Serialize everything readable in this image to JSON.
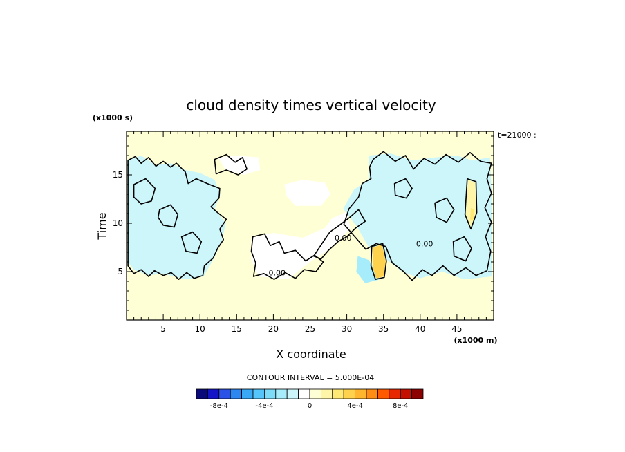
{
  "chart_data": {
    "type": "heatmap",
    "title": "cloud density times vertical velocity",
    "xlabel": "X coordinate",
    "ylabel": "Time",
    "x_unit_label": "(x1000 m)",
    "y_unit_label": "(x1000 s)",
    "time_label": "t=21000 :",
    "xlim": [
      0,
      50
    ],
    "ylim": [
      0,
      19.5
    ],
    "x_ticks": [
      5,
      10,
      15,
      20,
      25,
      30,
      35,
      40,
      45
    ],
    "y_ticks": [
      5,
      10,
      15
    ],
    "background_value": 0,
    "contour_interval_label": "CONTOUR INTERVAL = 5.000E-04",
    "contour_labels": [
      {
        "text": "0.00",
        "x": 20.5,
        "y": 4.6
      },
      {
        "text": "0.00",
        "x": 29.5,
        "y": 8.2
      },
      {
        "text": "0.00",
        "x": 40.6,
        "y": 7.6
      }
    ],
    "colorbar": {
      "levels": [
        -0.001,
        -0.0009,
        -0.0008,
        -0.0007,
        -0.0006,
        -0.0005,
        -0.0004,
        -0.0003,
        -0.0002,
        -0.0001,
        0,
        0.0001,
        0.0002,
        0.0003,
        0.0004,
        0.0005,
        0.0006,
        0.0007,
        0.0008,
        0.0009,
        0.001
      ],
      "colors": [
        "#0a0a7a",
        "#1515c8",
        "#2a52e6",
        "#2e86f0",
        "#3aa9f5",
        "#55c5fa",
        "#7dddf9",
        "#a6ecfb",
        "#cdf6fb",
        "#ffffff",
        "#ffffd6",
        "#fff5a8",
        "#ffe873",
        "#ffd24d",
        "#ffb52e",
        "#ff8c14",
        "#ff5a00",
        "#e82800",
        "#c41000",
        "#8c0000"
      ],
      "tick_labels": [
        {
          "value": -0.0008,
          "text": "-8e-4"
        },
        {
          "value": -0.0004,
          "text": "-4e-4"
        },
        {
          "value": 0,
          "text": "0"
        },
        {
          "value": 0.0004,
          "text": "4e-4"
        },
        {
          "value": 0.0008,
          "text": "8e-4"
        }
      ]
    },
    "negative_regions": [
      {
        "name": "west-updraft-band",
        "points": [
          [
            0.2,
            16.5
          ],
          [
            2,
            17
          ],
          [
            4,
            16
          ],
          [
            6,
            16.2
          ],
          [
            8,
            15.5
          ],
          [
            10,
            15.2
          ],
          [
            12,
            14.5
          ],
          [
            12.8,
            13
          ],
          [
            12,
            11.5
          ],
          [
            13.5,
            10
          ],
          [
            13,
            8.2
          ],
          [
            12,
            6.5
          ],
          [
            10.5,
            4.5
          ],
          [
            8,
            4.2
          ],
          [
            5,
            4.8
          ],
          [
            3,
            4.6
          ],
          [
            1,
            5.2
          ],
          [
            0.2,
            6
          ]
        ],
        "value": -0.00012
      },
      {
        "name": "central-west-patch",
        "points": [
          [
            12.5,
            16.8
          ],
          [
            15,
            17
          ],
          [
            18,
            16.8
          ],
          [
            18.2,
            15.5
          ],
          [
            16,
            15
          ],
          [
            13.5,
            15.5
          ]
        ],
        "value": -8e-05
      },
      {
        "name": "central-thin-patch",
        "points": [
          [
            21.5,
            14
          ],
          [
            24,
            14.5
          ],
          [
            27,
            14.2
          ],
          [
            27.8,
            13
          ],
          [
            26.5,
            11.8
          ],
          [
            23,
            11.8
          ],
          [
            21.8,
            12.8
          ]
        ],
        "value": -8e-05
      },
      {
        "name": "central-low-band",
        "points": [
          [
            17,
            8.5
          ],
          [
            20,
            9
          ],
          [
            24,
            8.5
          ],
          [
            27,
            9.5
          ],
          [
            28,
            10.5
          ],
          [
            30,
            11.2
          ],
          [
            30.5,
            9.5
          ],
          [
            28,
            7.5
          ],
          [
            25,
            6
          ],
          [
            22,
            4.2
          ],
          [
            18,
            4.5
          ],
          [
            17,
            6.2
          ]
        ],
        "value": -0.0001
      },
      {
        "name": "east-updraft-band",
        "points": [
          [
            33,
            17
          ],
          [
            36,
            17.2
          ],
          [
            39,
            16.5
          ],
          [
            42,
            16.8
          ],
          [
            45,
            17
          ],
          [
            47,
            16.5
          ],
          [
            49.5,
            16.8
          ],
          [
            49.8,
            12
          ],
          [
            49.8,
            4.5
          ],
          [
            46,
            4.2
          ],
          [
            43,
            5
          ],
          [
            40,
            4.3
          ],
          [
            37.5,
            5
          ],
          [
            35,
            6.5
          ],
          [
            33,
            7.5
          ],
          [
            31.5,
            9.5
          ],
          [
            29.5,
            11.5
          ],
          [
            31,
            13.5
          ],
          [
            33,
            14.5
          ]
        ],
        "value": -0.00012
      },
      {
        "name": "east-lower-stripe",
        "points": [
          [
            31.5,
            6.6
          ],
          [
            33,
            6.2
          ],
          [
            34.5,
            4.2
          ],
          [
            32.5,
            3.8
          ],
          [
            31.3,
            5
          ]
        ],
        "value": -0.00025
      }
    ],
    "positive_regions": [
      {
        "name": "east-positive-core",
        "points": [
          [
            33.5,
            7.5
          ],
          [
            34.8,
            7.8
          ],
          [
            35.3,
            6
          ],
          [
            35,
            4.5
          ],
          [
            34,
            4.3
          ],
          [
            33.5,
            5.5
          ]
        ],
        "value": 0.00032
      },
      {
        "name": "east-positive-inner",
        "points": [
          [
            34,
            6.6
          ],
          [
            34.8,
            6.5
          ],
          [
            34.9,
            5.2
          ],
          [
            34.2,
            5
          ]
        ],
        "value": 0.00038
      },
      {
        "name": "far-east-positive",
        "points": [
          [
            46.5,
            14.5
          ],
          [
            47.5,
            14.2
          ],
          [
            47.6,
            11
          ],
          [
            46.8,
            9.5
          ],
          [
            46.2,
            10.8
          ]
        ],
        "value": 0.00016
      },
      {
        "name": "far-east-positive-inner",
        "points": [
          [
            46.9,
            11.6
          ],
          [
            47.3,
            11.4
          ],
          [
            47.3,
            10.2
          ],
          [
            46.8,
            10.4
          ]
        ],
        "value": 0.00022
      }
    ],
    "zero_contours": [
      {
        "name": "west-contour",
        "points": [
          [
            0.2,
            16.5
          ],
          [
            1.2,
            16.9
          ],
          [
            2,
            16.2
          ],
          [
            3,
            16.8
          ],
          [
            4,
            15.9
          ],
          [
            5,
            16.4
          ],
          [
            6,
            15.8
          ],
          [
            6.8,
            16.2
          ],
          [
            8,
            15.3
          ],
          [
            8.4,
            14.1
          ],
          [
            9.5,
            14.6
          ],
          [
            11,
            14.1
          ],
          [
            12.7,
            13.6
          ],
          [
            12.6,
            12.6
          ],
          [
            11.5,
            11.7
          ],
          [
            12.4,
            11.1
          ],
          [
            13.6,
            10.4
          ],
          [
            12.7,
            9.4
          ],
          [
            13.2,
            8.3
          ],
          [
            12.4,
            7.4
          ],
          [
            11.8,
            6.4
          ],
          [
            10.6,
            5.6
          ],
          [
            10.4,
            4.6
          ],
          [
            9.2,
            4.3
          ],
          [
            8.2,
            4.9
          ],
          [
            7.1,
            4.2
          ],
          [
            6.1,
            4.9
          ],
          [
            5,
            4.6
          ],
          [
            3.8,
            5.1
          ],
          [
            3,
            4.5
          ],
          [
            2,
            5.2
          ],
          [
            1,
            4.8
          ],
          [
            0.2,
            5.6
          ]
        ]
      },
      {
        "name": "west-inner-contour-a",
        "points": [
          [
            1,
            14
          ],
          [
            2.6,
            14.6
          ],
          [
            3.9,
            13.6
          ],
          [
            3.4,
            12.3
          ],
          [
            2,
            12
          ],
          [
            1,
            12.7
          ]
        ]
      },
      {
        "name": "west-inner-contour-b",
        "points": [
          [
            4.5,
            11.4
          ],
          [
            6,
            11.9
          ],
          [
            7,
            10.9
          ],
          [
            6.5,
            9.6
          ],
          [
            5,
            9.8
          ],
          [
            4.3,
            10.6
          ]
        ]
      },
      {
        "name": "west-inner-contour-c",
        "points": [
          [
            7.5,
            8.6
          ],
          [
            9,
            9.1
          ],
          [
            10.2,
            8.1
          ],
          [
            9.6,
            6.9
          ],
          [
            8.1,
            7.1
          ]
        ]
      },
      {
        "name": "central-north-contour",
        "points": [
          [
            12,
            16.6
          ],
          [
            13.6,
            17.1
          ],
          [
            14.8,
            16.3
          ],
          [
            15.8,
            16.8
          ],
          [
            16.4,
            15.6
          ],
          [
            15.2,
            15
          ],
          [
            13.6,
            15.5
          ],
          [
            12.2,
            15.1
          ]
        ]
      },
      {
        "name": "central-low-contour",
        "points": [
          [
            17.2,
            8.6
          ],
          [
            18.8,
            8.9
          ],
          [
            19.6,
            7.7
          ],
          [
            20.8,
            8.1
          ],
          [
            21.5,
            6.9
          ],
          [
            23,
            7.2
          ],
          [
            24.4,
            6.1
          ],
          [
            25.6,
            6.7
          ],
          [
            26.8,
            6
          ],
          [
            25.8,
            5
          ],
          [
            24.2,
            5.2
          ],
          [
            23,
            4.3
          ],
          [
            21.6,
            4.9
          ],
          [
            20.1,
            4.2
          ],
          [
            18.7,
            4.8
          ],
          [
            17.3,
            4.5
          ],
          [
            17.6,
            5.9
          ],
          [
            17,
            7.1
          ]
        ]
      },
      {
        "name": "central-diagonal-contour",
        "points": [
          [
            25.5,
            6.6
          ],
          [
            26.8,
            8.1
          ],
          [
            27.7,
            9.1
          ],
          [
            29,
            9.8
          ],
          [
            30.4,
            10.6
          ],
          [
            31.6,
            11.4
          ],
          [
            32.5,
            10.2
          ],
          [
            31.2,
            9.5
          ],
          [
            30,
            8.6
          ],
          [
            28.8,
            8.1
          ],
          [
            27.5,
            7.2
          ],
          [
            26.5,
            6.3
          ]
        ]
      },
      {
        "name": "east-contour",
        "points": [
          [
            33.6,
            16.6
          ],
          [
            35,
            17.4
          ],
          [
            36.6,
            16.4
          ],
          [
            38,
            17
          ],
          [
            39.1,
            15.6
          ],
          [
            40.5,
            16.7
          ],
          [
            42,
            16.1
          ],
          [
            43.5,
            17.1
          ],
          [
            45.2,
            16.3
          ],
          [
            46.8,
            17.3
          ],
          [
            48.2,
            16.4
          ],
          [
            49.7,
            16.2
          ],
          [
            49.1,
            14.6
          ],
          [
            49.7,
            13.1
          ],
          [
            48.8,
            11.6
          ],
          [
            49.7,
            10.1
          ],
          [
            48.9,
            8.6
          ],
          [
            49.6,
            7.1
          ],
          [
            49.1,
            5.1
          ],
          [
            47.6,
            4.6
          ],
          [
            46.2,
            5.4
          ],
          [
            44.6,
            4.6
          ],
          [
            43.1,
            5.6
          ],
          [
            41.6,
            4.6
          ],
          [
            40.3,
            5.2
          ],
          [
            38.9,
            4.1
          ],
          [
            37.6,
            5.1
          ],
          [
            36.2,
            5.9
          ],
          [
            35.3,
            7.6
          ],
          [
            34,
            7.9
          ],
          [
            32.6,
            7.3
          ],
          [
            31.1,
            8.6
          ],
          [
            29.6,
            9.9
          ],
          [
            30.3,
            11.5
          ],
          [
            31.6,
            12.7
          ],
          [
            32.1,
            14.1
          ],
          [
            33.3,
            14.6
          ],
          [
            33.1,
            15.8
          ]
        ]
      },
      {
        "name": "east-inner-contour-a",
        "points": [
          [
            36.5,
            14.1
          ],
          [
            38,
            14.6
          ],
          [
            38.9,
            13.6
          ],
          [
            38.1,
            12.6
          ],
          [
            36.6,
            12.9
          ]
        ]
      },
      {
        "name": "east-inner-contour-b",
        "points": [
          [
            42,
            12.1
          ],
          [
            43.6,
            12.6
          ],
          [
            44.6,
            11.4
          ],
          [
            43.6,
            10.1
          ],
          [
            42.2,
            10.6
          ]
        ]
      },
      {
        "name": "east-inner-contour-c",
        "points": [
          [
            44.5,
            8.1
          ],
          [
            46,
            8.6
          ],
          [
            47,
            7.4
          ],
          [
            46.2,
            6.1
          ],
          [
            44.6,
            6.6
          ]
        ]
      },
      {
        "name": "east-positive-contour",
        "points": [
          [
            33.4,
            7.6
          ],
          [
            34.9,
            7.9
          ],
          [
            35.4,
            6.1
          ],
          [
            35.1,
            4.4
          ],
          [
            33.9,
            4.2
          ],
          [
            33.3,
            5.6
          ]
        ]
      },
      {
        "name": "far-east-positive-contour",
        "points": [
          [
            46.4,
            14.6
          ],
          [
            47.6,
            14.3
          ],
          [
            47.7,
            11.1
          ],
          [
            46.9,
            9.4
          ],
          [
            46.1,
            10.9
          ]
        ]
      }
    ]
  }
}
